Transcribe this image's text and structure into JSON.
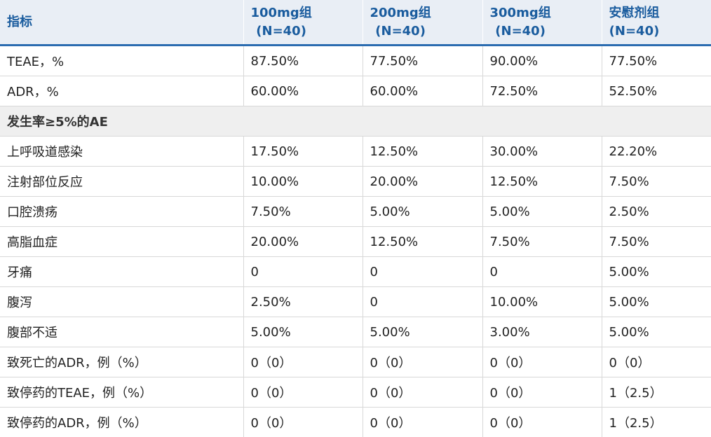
{
  "table": {
    "header": [
      {
        "title": "指标"
      },
      {
        "title": "100mg组",
        "n": "(N=40)"
      },
      {
        "title": "200mg组",
        "n": "(N=40)"
      },
      {
        "title": "300mg组",
        "n": "(N=40)"
      },
      {
        "title": "安慰剂组",
        "n": "(N=40)"
      }
    ],
    "rows": [
      [
        "TEAE，%",
        "87.50%",
        "77.50%",
        "90.00%",
        "77.50%"
      ],
      [
        "ADR，%",
        "60.00%",
        "60.00%",
        "72.50%",
        "52.50%"
      ],
      [
        "发生率≥5%的AE"
      ],
      [
        "上呼吸道感染",
        "17.50%",
        "12.50%",
        "30.00%",
        "22.20%"
      ],
      [
        "注射部位反应",
        "10.00%",
        "20.00%",
        "12.50%",
        "7.50%"
      ],
      [
        "口腔溃疡",
        "7.50%",
        "5.00%",
        "5.00%",
        "2.50%"
      ],
      [
        "高脂血症",
        "20.00%",
        "12.50%",
        "7.50%",
        "7.50%"
      ],
      [
        "牙痛",
        "0",
        "0",
        "0",
        "5.00%"
      ],
      [
        "腹泻",
        "2.50%",
        "0",
        "10.00%",
        "5.00%"
      ],
      [
        "腹部不适",
        "5.00%",
        "5.00%",
        "3.00%",
        "5.00%"
      ],
      [
        "致死亡的ADR，例（%）",
        "0（0）",
        "0（0）",
        "0（0）",
        "0（0）"
      ],
      [
        "致停药的TEAE，例（%）",
        "0（0）",
        "0（0）",
        "0（0）",
        "1（2.5）"
      ],
      [
        "致停药的ADR，例（%）",
        "0（0）",
        "0（0）",
        "0（0）",
        "1（2.5）"
      ]
    ]
  }
}
